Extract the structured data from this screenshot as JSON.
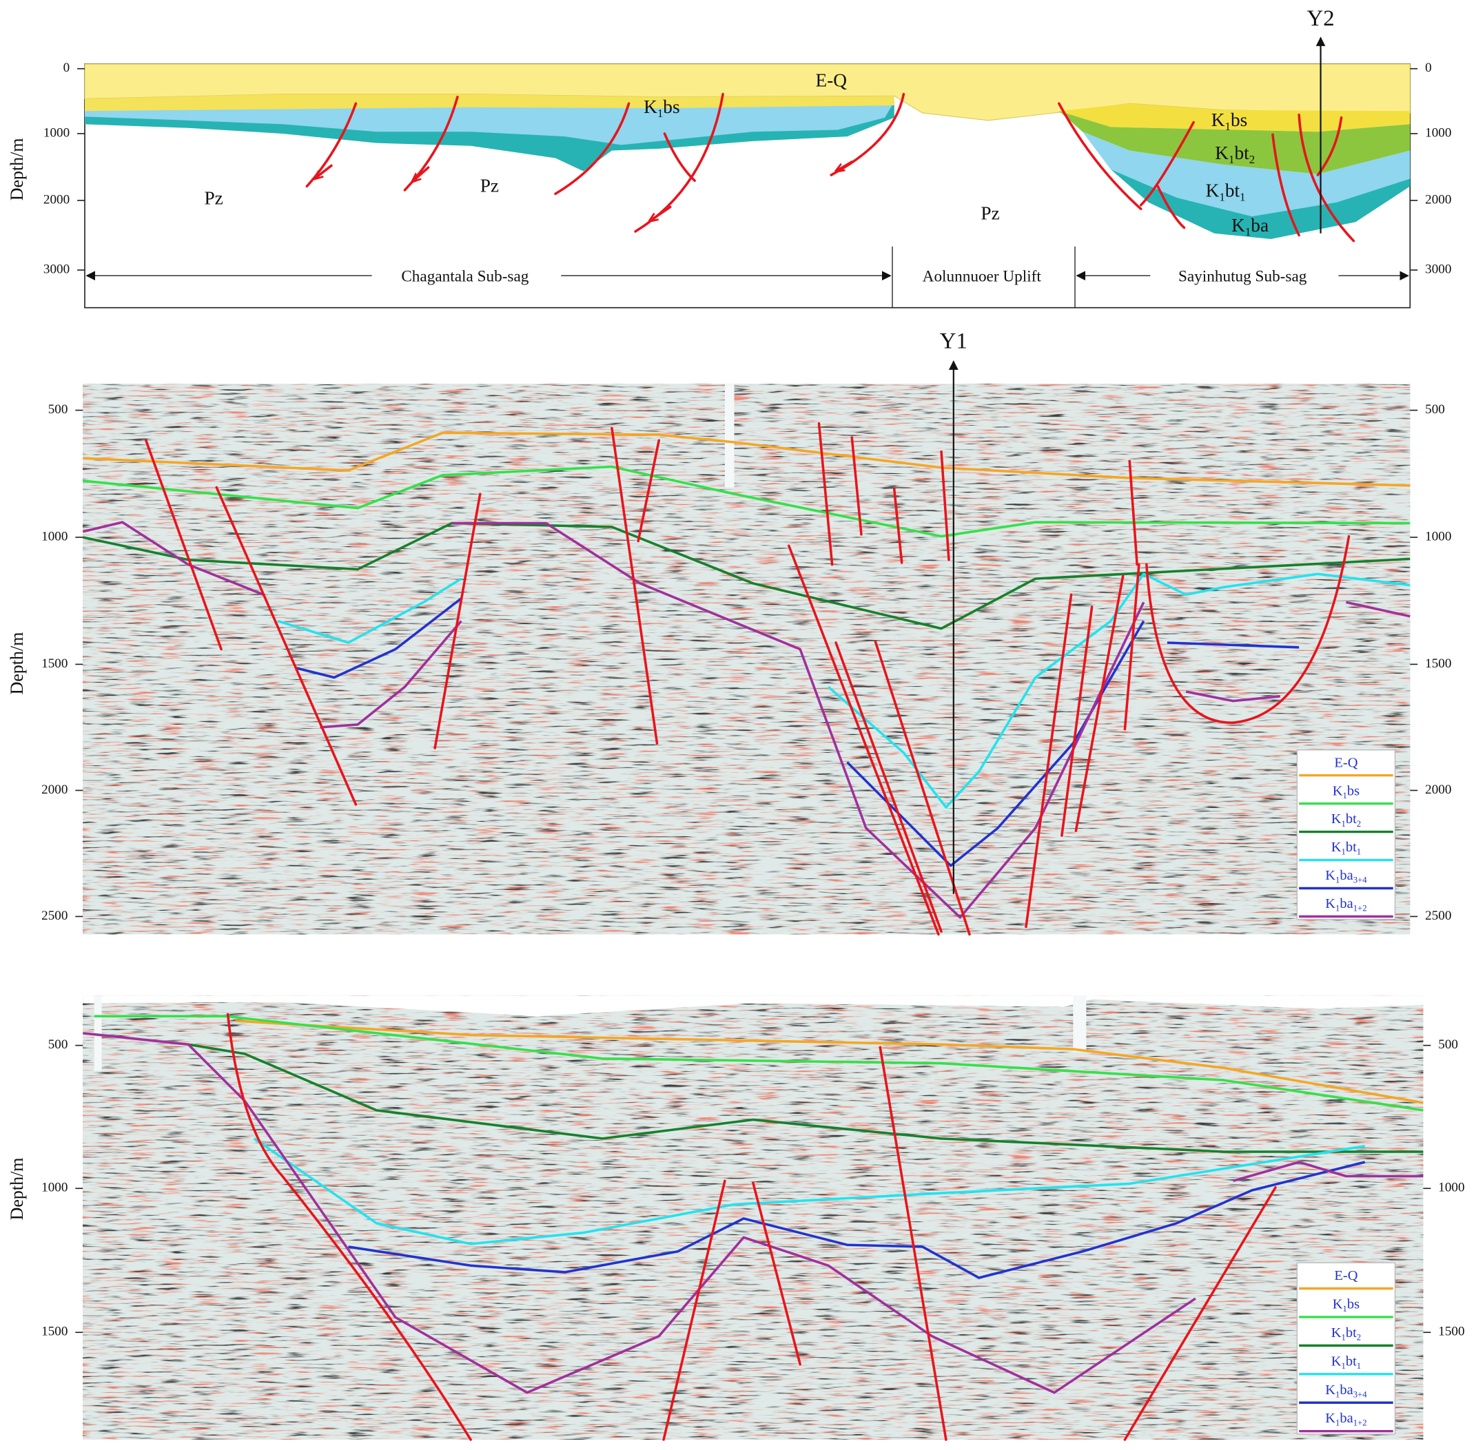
{
  "top_section": {
    "y_axis_label": "Depth/m",
    "left_ticks": [
      0,
      1000,
      2000,
      3000
    ],
    "right_ticks": [
      0,
      1000,
      2000,
      3000
    ],
    "labels": [
      [
        "E-Q"
      ],
      [
        "K",
        "1",
        "bs"
      ],
      [
        "Pz"
      ],
      [
        "Pz"
      ],
      [
        "Pz"
      ],
      [
        "K",
        "1",
        "bs"
      ],
      [
        "K",
        "1",
        "bt",
        "2"
      ],
      [
        "K",
        "1",
        "bt",
        "1"
      ],
      [
        "K",
        "1",
        "ba"
      ]
    ],
    "regions": [
      "Chagantala Sub-sag",
      "Aolunnuoer Uplift",
      "Sayinhutug Sub-sag"
    ],
    "well": "Y2"
  },
  "middle_section": {
    "y_axis_label": "Depth/m",
    "left_ticks": [
      500,
      1000,
      1500,
      2000,
      2500
    ],
    "right_ticks": [
      500,
      1000,
      1500,
      2000,
      2500
    ],
    "well": "Y1",
    "legend": [
      {
        "parts": [
          "E-Q"
        ],
        "color": "#f5a623"
      },
      {
        "parts": [
          "K",
          "1",
          "bs"
        ],
        "color": "#35e04a"
      },
      {
        "parts": [
          "K",
          "1",
          "bt",
          "2"
        ],
        "color": "#17802c"
      },
      {
        "parts": [
          "K",
          "1",
          "bt",
          "1"
        ],
        "color": "#22e3ef"
      },
      {
        "parts": [
          "K",
          "1",
          "ba",
          "3+4"
        ],
        "color": "#2233cc"
      },
      {
        "parts": [
          "K",
          "1",
          "ba",
          "1+2"
        ],
        "color": "#a0309c"
      }
    ]
  },
  "bottom_section": {
    "y_axis_label": "Depth/m",
    "left_ticks": [
      500,
      1000,
      1500
    ],
    "right_ticks": [
      500,
      1000,
      1500
    ],
    "legend": [
      {
        "parts": [
          "E-Q"
        ],
        "color": "#f5a623"
      },
      {
        "parts": [
          "K",
          "1",
          "bs"
        ],
        "color": "#35e04a"
      },
      {
        "parts": [
          "K",
          "1",
          "bt",
          "2"
        ],
        "color": "#17802c"
      },
      {
        "parts": [
          "K",
          "1",
          "bt",
          "1"
        ],
        "color": "#22e3ef"
      },
      {
        "parts": [
          "K",
          "1",
          "ba",
          "3+4"
        ],
        "color": "#2233cc"
      },
      {
        "parts": [
          "K",
          "1",
          "ba",
          "1+2"
        ],
        "color": "#a0309c"
      }
    ]
  }
}
